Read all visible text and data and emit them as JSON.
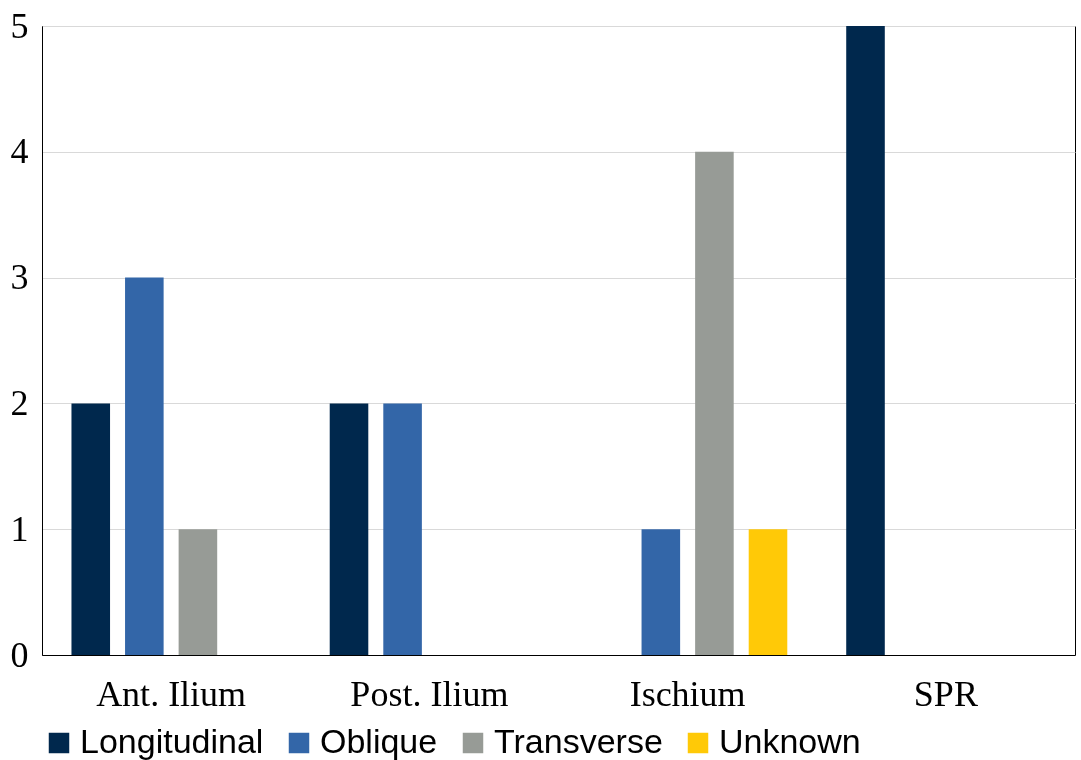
{
  "chart_data": {
    "type": "bar",
    "categories": [
      "Ant. Ilium",
      "Post. Ilium",
      "Ischium",
      "SPR"
    ],
    "series": [
      {
        "name": "Longitudinal",
        "color": "#00284d",
        "values": [
          2,
          2,
          0,
          5
        ]
      },
      {
        "name": "Oblique",
        "color": "#3366a8",
        "values": [
          3,
          2,
          1,
          0
        ]
      },
      {
        "name": "Transverse",
        "color": "#979b96",
        "values": [
          1,
          0,
          4,
          0
        ]
      },
      {
        "name": "Unknown",
        "color": "#ffc907",
        "values": [
          0,
          0,
          1,
          0
        ]
      }
    ],
    "ylim": [
      0,
      5
    ],
    "yticks": [
      0,
      1,
      2,
      3,
      4,
      5
    ],
    "grid": "y",
    "legend": "bottom"
  }
}
